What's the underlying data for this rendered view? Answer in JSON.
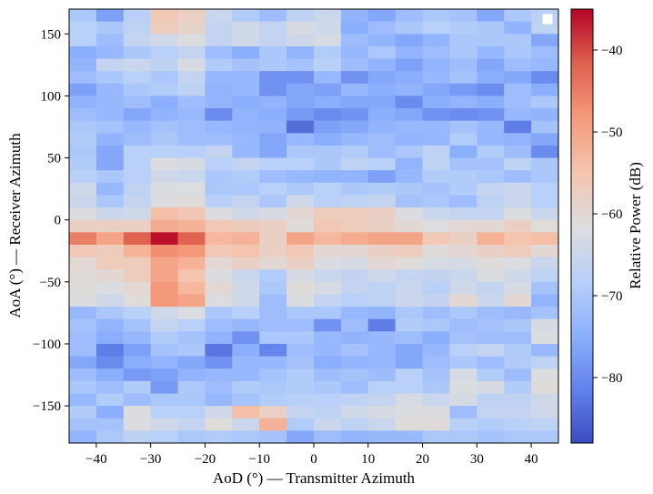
{
  "chart_data": {
    "type": "heatmap",
    "title": "",
    "xlabel": "AoD (°) — Transmitter Azimuth",
    "ylabel": "AoA (°) — Receiver Azimuth",
    "colorbar_label": "Relative Power (dB)",
    "colormap": "coolwarm",
    "color_range": [
      -88,
      -35
    ],
    "x_range": [
      -45,
      45
    ],
    "y_range": [
      -180,
      170
    ],
    "x_bin_width": 5,
    "y_bin_width": 10,
    "x_ticks": [
      -40,
      -30,
      -20,
      -10,
      0,
      10,
      20,
      30,
      40
    ],
    "x_tick_labels": [
      "−40",
      "−30",
      "−20",
      "−10",
      "0",
      "10",
      "20",
      "30",
      "40"
    ],
    "y_ticks": [
      -150,
      -100,
      -50,
      0,
      50,
      100,
      150
    ],
    "y_tick_labels": [
      "−150",
      "−100",
      "−50",
      "0",
      "50",
      "100",
      "150"
    ],
    "colorbar_ticks": [
      -80,
      -70,
      -60,
      -50,
      -40
    ],
    "colorbar_tick_labels": [
      "−80",
      "−70",
      "−60",
      "−50",
      "−40"
    ],
    "legend": {
      "position": "top-right",
      "entries": []
    },
    "x_bin_edges_note": "columns span AoD -45..45 in 5° bins (18 columns)",
    "rows_order": "top to bottom, AoA 170 down to -180 in 10° bins (35 rows)",
    "values": [
      [
        -70,
        -77,
        -68,
        -56,
        -58,
        -65,
        -69,
        -72,
        -67,
        -65,
        -74,
        -76,
        -72,
        -70,
        -71,
        -76,
        -70,
        -68
      ],
      [
        -68,
        -70,
        -67,
        -57,
        -59,
        -66,
        -64,
        -66,
        -63,
        -64,
        -75,
        -72,
        -70,
        -68,
        -69,
        -70,
        -74,
        -67
      ],
      [
        -68,
        -72,
        -66,
        -64,
        -62,
        -66,
        -64,
        -66,
        -64,
        -63,
        -72,
        -74,
        -76,
        -74,
        -70,
        -70,
        -70,
        -76
      ],
      [
        -75,
        -73,
        -70,
        -68,
        -66,
        -72,
        -75,
        -70,
        -74,
        -69,
        -73,
        -70,
        -74,
        -72,
        -70,
        -73,
        -70,
        -72
      ],
      [
        -74,
        -66,
        -65,
        -67,
        -63,
        -69,
        -71,
        -70,
        -71,
        -68,
        -72,
        -74,
        -77,
        -74,
        -72,
        -76,
        -72,
        -73
      ],
      [
        -72,
        -70,
        -68,
        -70,
        -66,
        -73,
        -73,
        -79,
        -79,
        -73,
        -79,
        -76,
        -75,
        -73,
        -71,
        -75,
        -76,
        -80
      ],
      [
        -77,
        -73,
        -70,
        -69,
        -67,
        -74,
        -73,
        -79,
        -76,
        -77,
        -73,
        -75,
        -74,
        -76,
        -78,
        -80,
        -72,
        -75
      ],
      [
        -74,
        -73,
        -72,
        -75,
        -72,
        -74,
        -75,
        -74,
        -76,
        -75,
        -76,
        -76,
        -80,
        -75,
        -74,
        -75,
        -72,
        -70
      ],
      [
        -72,
        -73,
        -76,
        -74,
        -73,
        -80,
        -74,
        -75,
        -78,
        -80,
        -79,
        -75,
        -76,
        -79,
        -80,
        -79,
        -73,
        -74
      ],
      [
        -70,
        -71,
        -73,
        -71,
        -72,
        -73,
        -74,
        -74,
        -84,
        -77,
        -76,
        -74,
        -73,
        -73,
        -71,
        -73,
        -82,
        -71
      ],
      [
        -69,
        -74,
        -72,
        -70,
        -72,
        -72,
        -73,
        -76,
        -73,
        -75,
        -73,
        -72,
        -74,
        -73,
        -69,
        -73,
        -74,
        -76
      ],
      [
        -70,
        -76,
        -68,
        -68,
        -68,
        -66,
        -73,
        -76,
        -70,
        -70,
        -69,
        -72,
        -70,
        -67,
        -75,
        -69,
        -72,
        -80
      ],
      [
        -69,
        -76,
        -68,
        -62,
        -63,
        -68,
        -66,
        -68,
        -68,
        -70,
        -67,
        -68,
        -74,
        -67,
        -71,
        -71,
        -67,
        -70
      ],
      [
        -68,
        -70,
        -68,
        -64,
        -65,
        -70,
        -69,
        -72,
        -73,
        -74,
        -74,
        -77,
        -73,
        -69,
        -69,
        -70,
        -72,
        -70
      ],
      [
        -64,
        -73,
        -67,
        -62,
        -62,
        -70,
        -70,
        -68,
        -70,
        -68,
        -70,
        -69,
        -70,
        -71,
        -69,
        -66,
        -65,
        -68
      ],
      [
        -65,
        -70,
        -66,
        -62,
        -61,
        -68,
        -66,
        -70,
        -64,
        -68,
        -67,
        -66,
        -71,
        -70,
        -72,
        -67,
        -65,
        -68
      ],
      [
        -62,
        -65,
        -64,
        -54,
        -56,
        -62,
        -64,
        -63,
        -60,
        -57,
        -57,
        -58,
        -62,
        -65,
        -66,
        -66,
        -62,
        -65
      ],
      [
        -58,
        -58,
        -58,
        -51,
        -52,
        -56,
        -57,
        -58,
        -61,
        -56,
        -57,
        -58,
        -60,
        -62,
        -60,
        -60,
        -58,
        -61
      ],
      [
        -45,
        -50,
        -42,
        -36,
        -42,
        -53,
        -52,
        -58,
        -50,
        -53,
        -51,
        -50,
        -50,
        -56,
        -58,
        -52,
        -55,
        -54
      ],
      [
        -56,
        -57,
        -52,
        -47,
        -48,
        -56,
        -55,
        -58,
        -56,
        -60,
        -60,
        -58,
        -57,
        -61,
        -60,
        -58,
        -57,
        -60
      ],
      [
        -60,
        -57,
        -57,
        -50,
        -52,
        -60,
        -58,
        -60,
        -58,
        -62,
        -63,
        -60,
        -61,
        -63,
        -63,
        -61,
        -62,
        -65
      ],
      [
        -61,
        -60,
        -57,
        -50,
        -55,
        -62,
        -65,
        -69,
        -63,
        -65,
        -66,
        -64,
        -66,
        -66,
        -65,
        -62,
        -64,
        -67
      ],
      [
        -61,
        -62,
        -60,
        -48,
        -53,
        -60,
        -64,
        -70,
        -61,
        -63,
        -66,
        -67,
        -65,
        -68,
        -64,
        -66,
        -63,
        -71
      ],
      [
        -62,
        -64,
        -61,
        -48,
        -50,
        -62,
        -64,
        -72,
        -62,
        -66,
        -68,
        -67,
        -65,
        -66,
        -60,
        -65,
        -60,
        -74
      ],
      [
        -73,
        -70,
        -68,
        -64,
        -62,
        -70,
        -68,
        -72,
        -70,
        -70,
        -73,
        -74,
        -70,
        -72,
        -70,
        -72,
        -73,
        -71
      ],
      [
        -71,
        -74,
        -71,
        -66,
        -68,
        -72,
        -73,
        -72,
        -72,
        -79,
        -72,
        -82,
        -69,
        -70,
        -72,
        -71,
        -70,
        -63
      ],
      [
        -72,
        -75,
        -73,
        -69,
        -71,
        -74,
        -79,
        -70,
        -70,
        -73,
        -74,
        -73,
        -72,
        -75,
        -71,
        -72,
        -72,
        -62
      ],
      [
        -72,
        -82,
        -77,
        -71,
        -70,
        -83,
        -75,
        -81,
        -72,
        -73,
        -71,
        -73,
        -76,
        -73,
        -68,
        -66,
        -69,
        -73
      ],
      [
        -76,
        -80,
        -75,
        -74,
        -76,
        -79,
        -73,
        -73,
        -71,
        -75,
        -74,
        -73,
        -76,
        -72,
        -70,
        -72,
        -69,
        -67
      ],
      [
        -72,
        -75,
        -78,
        -77,
        -74,
        -73,
        -73,
        -71,
        -69,
        -72,
        -71,
        -72,
        -68,
        -71,
        -63,
        -69,
        -72,
        -62
      ],
      [
        -70,
        -72,
        -69,
        -78,
        -70,
        -72,
        -69,
        -70,
        -69,
        -70,
        -72,
        -68,
        -68,
        -70,
        -62,
        -63,
        -69,
        -61
      ],
      [
        -73,
        -69,
        -72,
        -70,
        -70,
        -73,
        -71,
        -69,
        -68,
        -68,
        -67,
        -66,
        -63,
        -65,
        -63,
        -67,
        -67,
        -64
      ],
      [
        -69,
        -75,
        -62,
        -68,
        -68,
        -64,
        -54,
        -58,
        -66,
        -67,
        -64,
        -63,
        -62,
        -62,
        -72,
        -66,
        -66,
        -64
      ],
      [
        -71,
        -71,
        -62,
        -64,
        -66,
        -61,
        -65,
        -52,
        -69,
        -65,
        -67,
        -65,
        -61,
        -61,
        -68,
        -69,
        -68,
        -67
      ],
      [
        -74,
        -70,
        -67,
        -68,
        -70,
        -69,
        -70,
        -71,
        -76,
        -72,
        -74,
        -73,
        -73,
        -70,
        -70,
        -71,
        -70,
        -70
      ]
    ]
  }
}
